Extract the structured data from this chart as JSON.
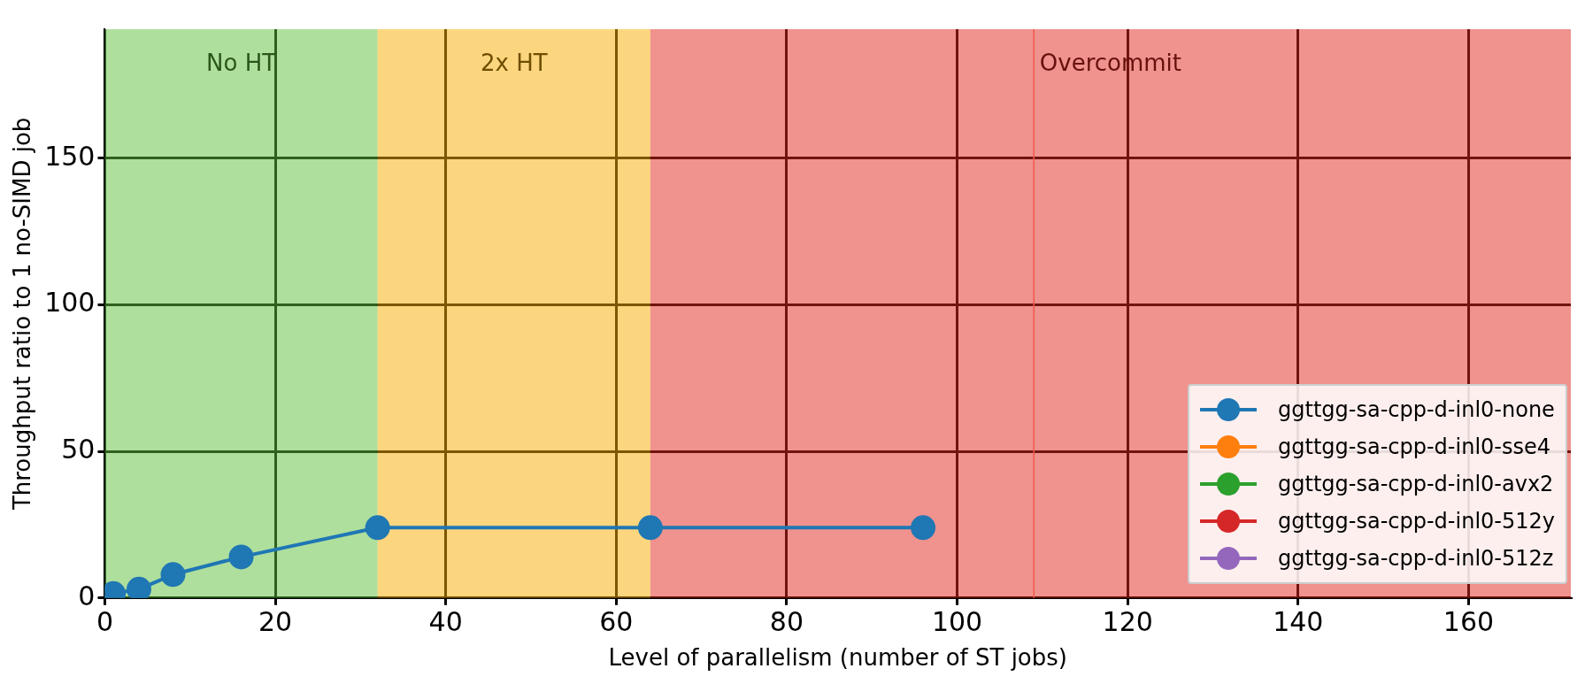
{
  "chart_data": {
    "type": "line",
    "xlabel": "Level of parallelism (number of ST jobs)",
    "ylabel": "Throughput ratio to 1 no-SIMD job",
    "x": [
      1,
      4,
      8,
      16,
      32,
      64,
      96
    ],
    "series": [
      {
        "name": "ggttgg-sa-cpp-d-inl0-none",
        "color": "#1f77b4",
        "values": [
          1.5,
          3,
          8,
          14,
          24,
          24,
          24
        ]
      },
      {
        "name": "ggttgg-sa-cpp-d-inl0-sse4",
        "color": "#ff7f0e",
        "values": [
          null,
          null,
          null,
          null,
          null,
          null,
          null
        ]
      },
      {
        "name": "ggttgg-sa-cpp-d-inl0-avx2",
        "color": "#2ca02c",
        "values": [
          null,
          null,
          null,
          null,
          null,
          null,
          null
        ]
      },
      {
        "name": "ggttgg-sa-cpp-d-inl0-512y",
        "color": "#d62728",
        "values": [
          null,
          null,
          null,
          null,
          null,
          null,
          null
        ]
      },
      {
        "name": "ggttgg-sa-cpp-d-inl0-512z",
        "color": "#9467bd",
        "values": [
          null,
          null,
          null,
          null,
          null,
          null,
          null
        ]
      }
    ],
    "xlim": [
      0,
      172
    ],
    "xticks": [
      0,
      20,
      40,
      60,
      80,
      100,
      120,
      140,
      160
    ],
    "ylim": [
      0,
      194
    ],
    "yticks": [
      0,
      50,
      100,
      150
    ],
    "bands": [
      {
        "axis": "x",
        "from": 0,
        "to": 32,
        "label": "No HT",
        "color": "#60bf3c"
      },
      {
        "axis": "x",
        "from": 32,
        "to": 64,
        "label": "2x HT",
        "color": "#f9ad00"
      },
      {
        "axis": "x",
        "from": 64,
        "to": 172,
        "label": "Overcommit",
        "color": "#e2261e"
      }
    ],
    "ref_lines": [
      {
        "axis": "x",
        "value": 109,
        "color": "#f05a4a"
      }
    ],
    "grid": true,
    "legend": "bottom right",
    "marker": "circle",
    "line_style": "solid"
  }
}
